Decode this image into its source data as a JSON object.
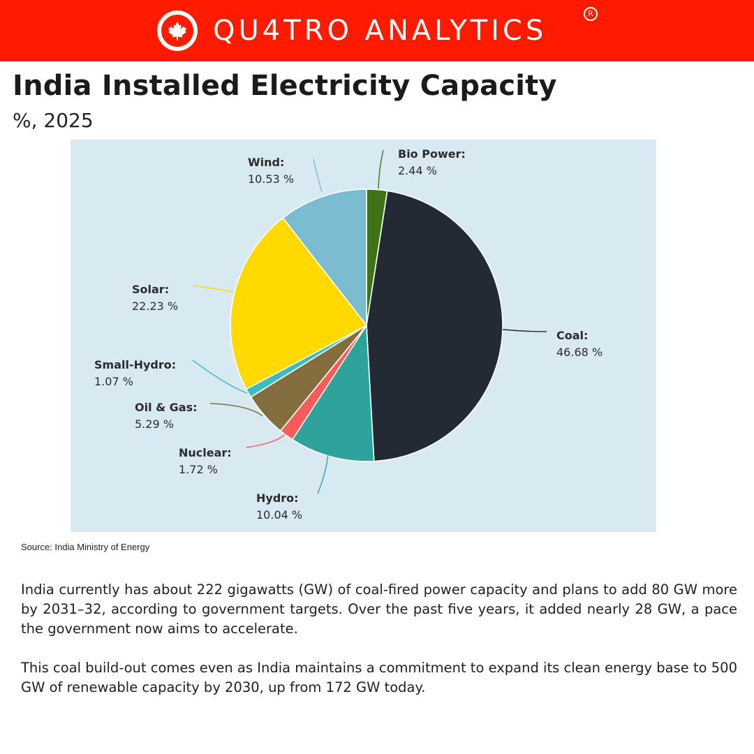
{
  "header": {
    "brand": "QU4TRO ANALYTICS",
    "registered_mark": "R",
    "logo_icon": "maple-leaf-icon",
    "color": "#ff1a00"
  },
  "title": "India Installed Electricity Capacity",
  "subtitle": "%, 2025",
  "chart_data": {
    "type": "pie",
    "title": "",
    "slices": [
      {
        "label": "Bio Power",
        "value": 2.44,
        "display": "2.44 %",
        "color": "#3f7317"
      },
      {
        "label": "Coal",
        "value": 46.68,
        "display": "46.68 %",
        "color": "#232a33"
      },
      {
        "label": "Hydro",
        "value": 10.04,
        "display": "10.04 %",
        "color": "#2ea39b"
      },
      {
        "label": "Nuclear",
        "value": 1.72,
        "display": "1.72 %",
        "color": "#f95b5b"
      },
      {
        "label": "Oil & Gas",
        "value": 5.29,
        "display": "5.29 %",
        "color": "#836d3c"
      },
      {
        "label": "Small-Hydro",
        "value": 1.07,
        "display": "1.07 %",
        "color": "#3dbbbd"
      },
      {
        "label": "Solar",
        "value": 22.23,
        "display": "22.23 %",
        "color": "#ffd900"
      },
      {
        "label": "Wind",
        "value": 10.53,
        "display": "10.53 %",
        "color": "#79bccf"
      }
    ]
  },
  "source": "Source: India Ministry of Energy",
  "paragraphs": [
    "India currently has about 222 gigawatts (GW) of coal-fired power capacity and plans to add 80 GW more by 2031–32, according to government targets. Over the past five years, it added nearly 28 GW, a pace the government now aims to accelerate.",
    "This coal build-out comes even as India maintains a commitment to expand its clean energy base to 500 GW of renewable capacity by 2030, up from 172 GW today."
  ]
}
